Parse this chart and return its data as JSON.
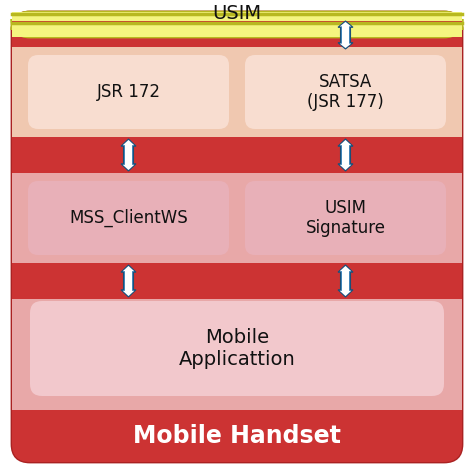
{
  "labels": {
    "title": "Mobile Handset",
    "app": "Mobile\nApplicattion",
    "left_mid": "MSS_ClientWS",
    "right_mid": "USIM\nSignature",
    "left_bot": "JSR 172",
    "right_bot": "SATSA\n(JSR 177)",
    "usim": "USIM"
  },
  "colors": {
    "outer_red": "#cc3333",
    "outer_red_dark": "#aa2222",
    "title_red": "#cc3333",
    "inner_pink_bg": "#e8a8a8",
    "app_box": "#f2c8cc",
    "mid_box": "#e8b0b8",
    "bot_box": "#f8ddd0",
    "usim_bg": "#f5f580",
    "usim_border": "#b8b820",
    "arrow_blue": "#4488bb",
    "arrow_white": "#ffffff",
    "text_dark": "#111111",
    "text_white": "#ffffff"
  },
  "figsize": [
    4.74,
    4.74
  ],
  "dpi": 100
}
